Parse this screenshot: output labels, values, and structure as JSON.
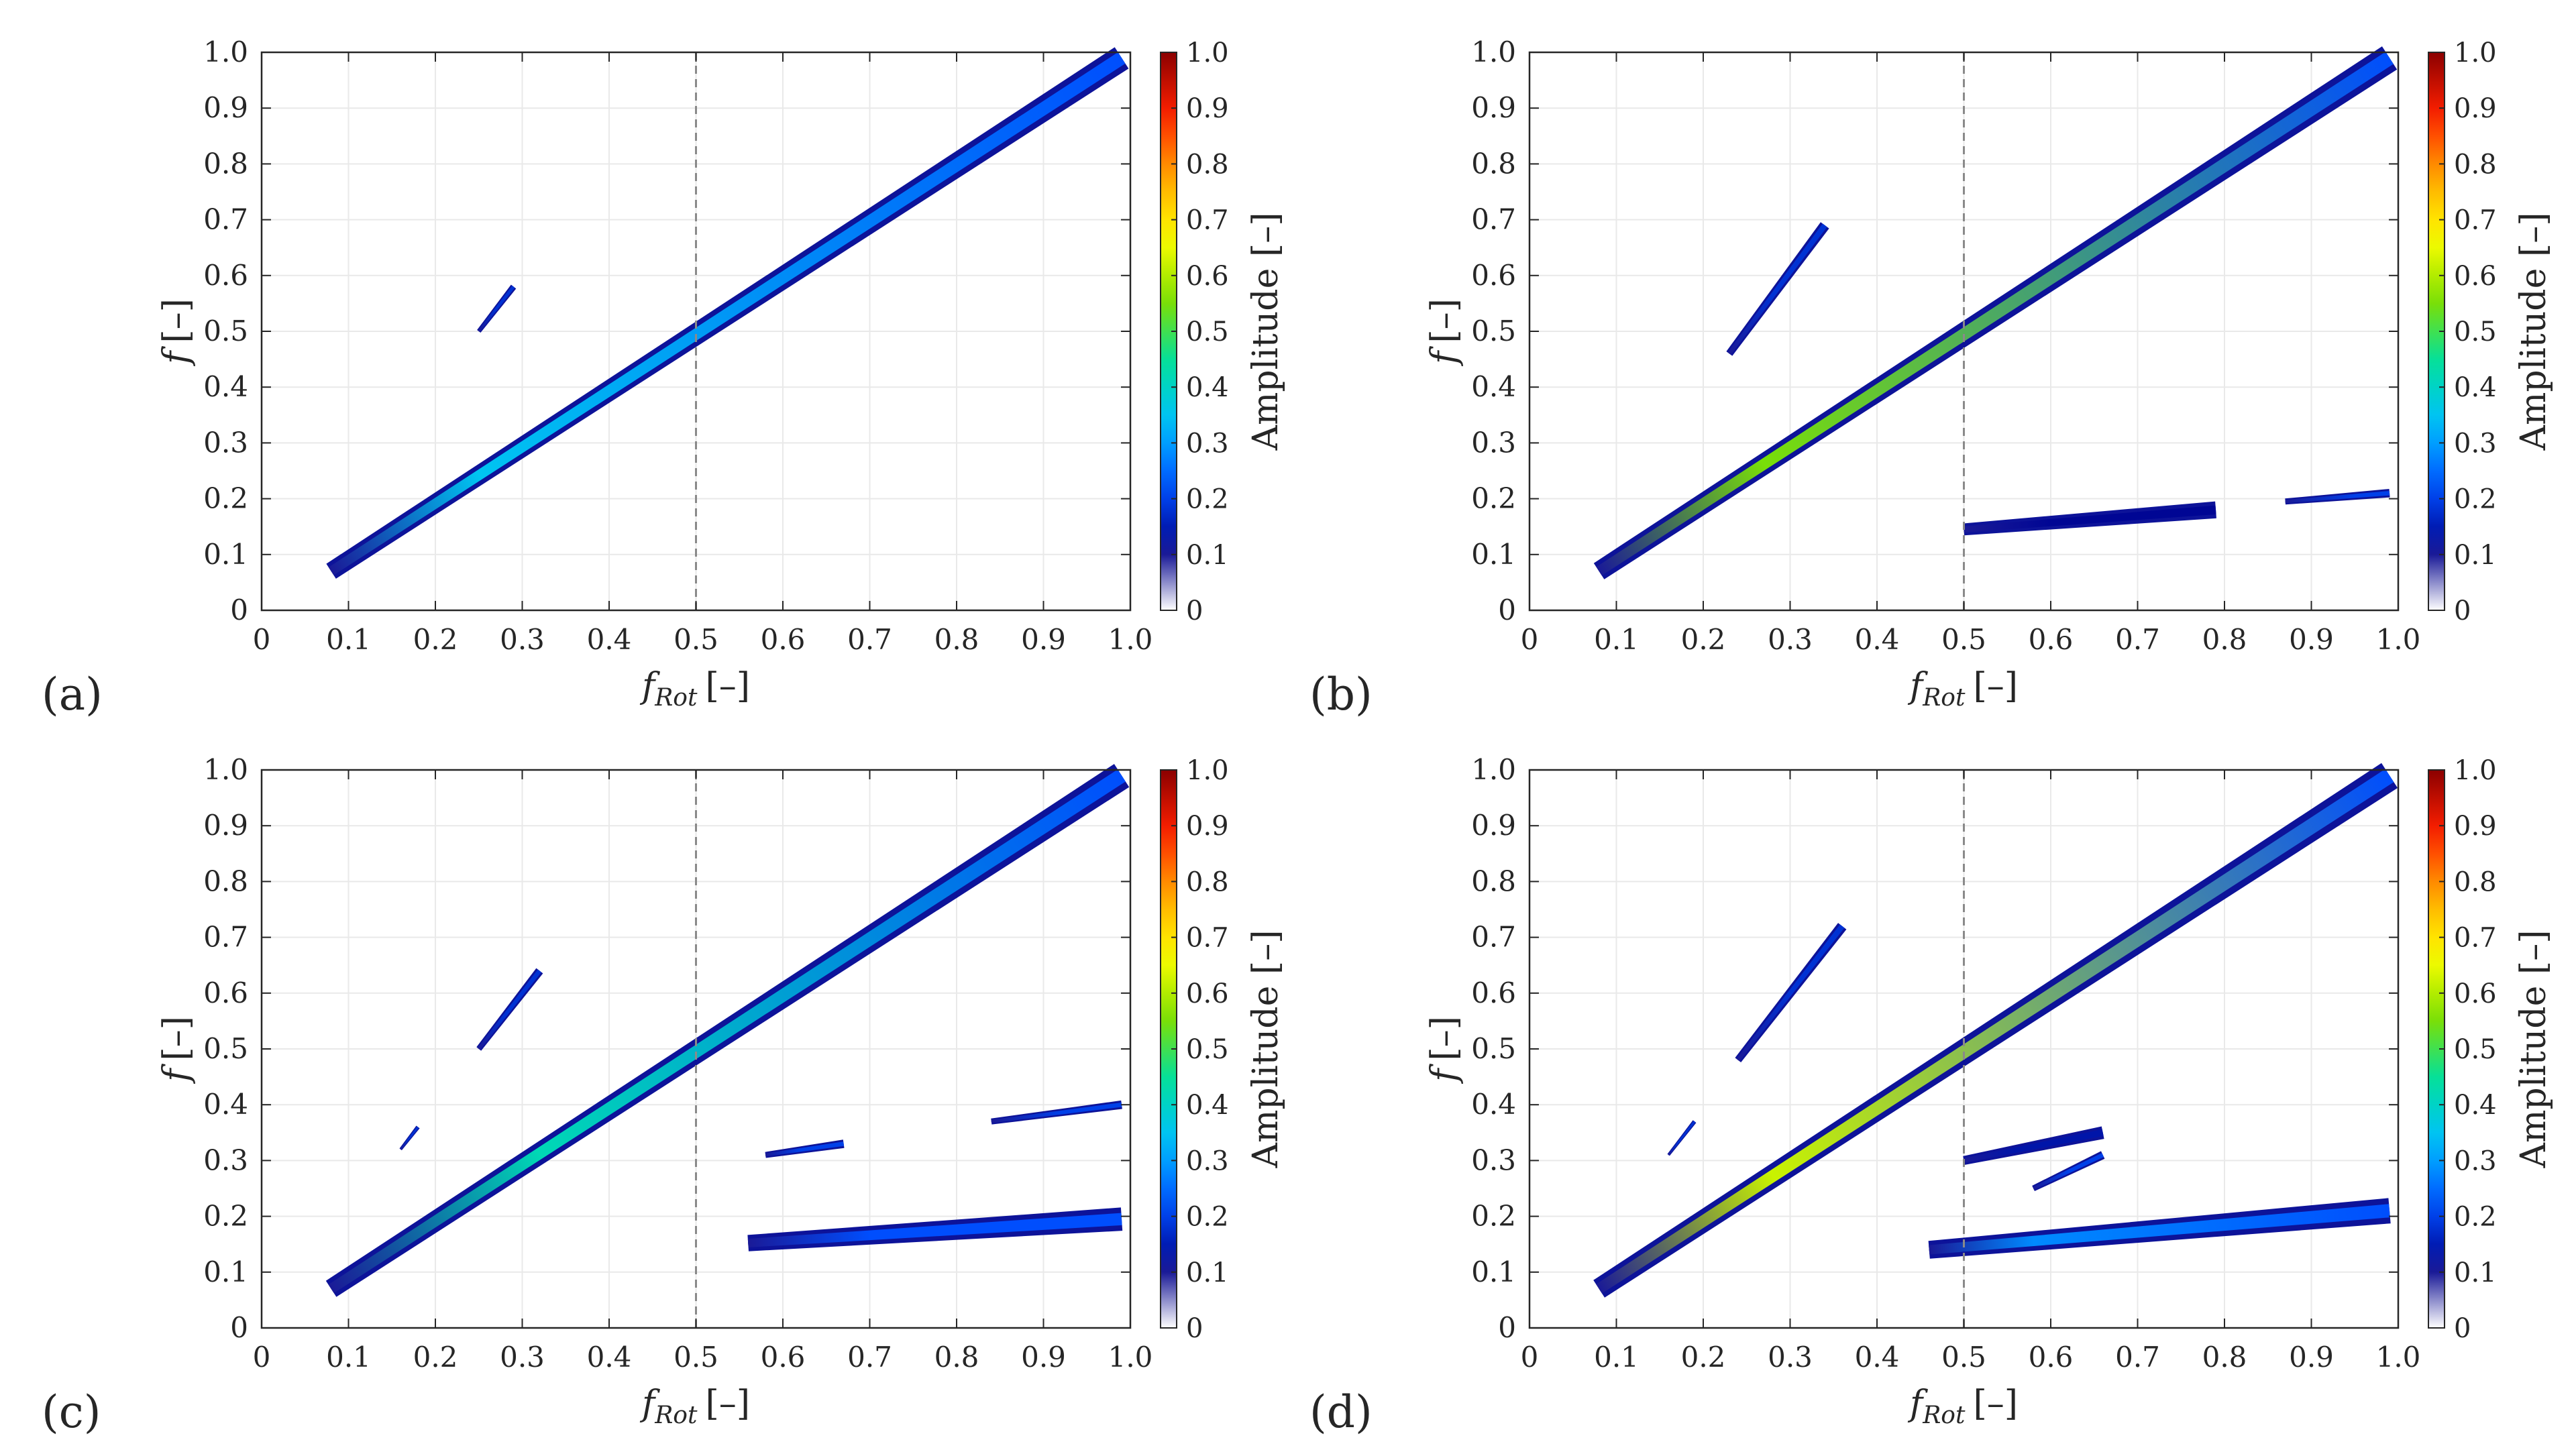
{
  "figure": {
    "colormap": [
      "#ffffff",
      "#00008b",
      "#0050ff",
      "#00bfff",
      "#00e0a0",
      "#7fdf00",
      "#ffff00",
      "#ffa500",
      "#ff2000",
      "#8b0000"
    ],
    "dash_color": "#8a8a8a",
    "grid_color": "#e9e9e9"
  },
  "chart_data": [
    {
      "panel_label": "(a)",
      "type": "heatmap",
      "xlabel": "f",
      "xlabel_sub": "Rot",
      "xlabel_unit": "[–]",
      "ylabel": "f",
      "ylabel_unit": "[–]",
      "xlim": [
        0,
        1
      ],
      "ylim": [
        0,
        1
      ],
      "xticks": [
        "0",
        "0.1",
        "0.2",
        "0.3",
        "0.4",
        "0.5",
        "0.6",
        "0.7",
        "0.8",
        "0.9",
        "1.0"
      ],
      "yticks": [
        "0",
        "0.1",
        "0.2",
        "0.3",
        "0.4",
        "0.5",
        "0.6",
        "0.7",
        "0.8",
        "0.9",
        "1.0"
      ],
      "vline_x": 0.5,
      "colorbar": {
        "label": "Amplitude [–]",
        "range": [
          0,
          1
        ],
        "ticks": [
          "0",
          "0.1",
          "0.2",
          "0.3",
          "0.4",
          "0.5",
          "0.6",
          "0.7",
          "0.8",
          "0.9",
          "1.0"
        ]
      },
      "bands": [
        {
          "name": "1x order line",
          "x": [
            0.08,
            0.99
          ],
          "y": [
            0.07,
            0.99
          ],
          "halfwidth": 0.012,
          "peak_amplitude": 0.35,
          "peak_at": 0.25
        },
        {
          "name": "sub-harmonic streak",
          "x": [
            0.25,
            0.29
          ],
          "y": [
            0.5,
            0.58
          ],
          "halfwidth": 0.003,
          "peak_amplitude": 0.18,
          "peak_at": 0.27
        }
      ]
    },
    {
      "panel_label": "(b)",
      "type": "heatmap",
      "xlabel": "f",
      "xlabel_sub": "Rot",
      "xlabel_unit": "[–]",
      "ylabel": "f",
      "ylabel_unit": "[–]",
      "xlim": [
        0,
        1
      ],
      "ylim": [
        0,
        1
      ],
      "xticks": [
        "0",
        "0.1",
        "0.2",
        "0.3",
        "0.4",
        "0.5",
        "0.6",
        "0.7",
        "0.8",
        "0.9",
        "1.0"
      ],
      "yticks": [
        "0",
        "0.1",
        "0.2",
        "0.3",
        "0.4",
        "0.5",
        "0.6",
        "0.7",
        "0.8",
        "0.9",
        "1.0"
      ],
      "vline_x": 0.5,
      "colorbar": {
        "label": "Amplitude [–]",
        "range": [
          0,
          1
        ],
        "ticks": [
          "0",
          "0.1",
          "0.2",
          "0.3",
          "0.4",
          "0.5",
          "0.6",
          "0.7",
          "0.8",
          "0.9",
          "1.0"
        ]
      },
      "bands": [
        {
          "name": "1x order line",
          "x": [
            0.08,
            0.99
          ],
          "y": [
            0.07,
            0.99
          ],
          "halfwidth": 0.013,
          "peak_amplitude": 0.55,
          "peak_at": 0.27
        },
        {
          "name": "sub-harmonic streak",
          "x": [
            0.23,
            0.34
          ],
          "y": [
            0.46,
            0.69
          ],
          "halfwidth": 0.005,
          "peak_amplitude": 0.18,
          "peak_at": 0.28
        },
        {
          "name": "low-frequency band",
          "x": [
            0.5,
            0.79
          ],
          "y": [
            0.145,
            0.18
          ],
          "halfwidth": 0.008,
          "peak_amplitude": 0.12,
          "peak_at": 0.6
        },
        {
          "name": "low-frequency band tail",
          "x": [
            0.87,
            0.99
          ],
          "y": [
            0.195,
            0.21
          ],
          "halfwidth": 0.004,
          "peak_amplitude": 0.2,
          "peak_at": 0.95
        }
      ]
    },
    {
      "panel_label": "(c)",
      "type": "heatmap",
      "xlabel": "f",
      "xlabel_sub": "Rot",
      "xlabel_unit": "[–]",
      "ylabel": "f",
      "ylabel_unit": "[–]",
      "xlim": [
        0,
        1
      ],
      "ylim": [
        0,
        1
      ],
      "xticks": [
        "0",
        "0.1",
        "0.2",
        "0.3",
        "0.4",
        "0.5",
        "0.6",
        "0.7",
        "0.8",
        "0.9",
        "1.0"
      ],
      "yticks": [
        "0",
        "0.1",
        "0.2",
        "0.3",
        "0.4",
        "0.5",
        "0.6",
        "0.7",
        "0.8",
        "0.9",
        "1.0"
      ],
      "vline_x": 0.5,
      "colorbar": {
        "label": "Amplitude [–]",
        "range": [
          0,
          1
        ],
        "ticks": [
          "0",
          "0.1",
          "0.2",
          "0.3",
          "0.4",
          "0.5",
          "0.6",
          "0.7",
          "0.8",
          "0.9",
          "1.0"
        ]
      },
      "bands": [
        {
          "name": "1x order line",
          "x": [
            0.08,
            0.99
          ],
          "y": [
            0.07,
            0.99
          ],
          "halfwidth": 0.013,
          "peak_amplitude": 0.42,
          "peak_at": 0.32
        },
        {
          "name": "sub-harmonic streak",
          "x": [
            0.25,
            0.32
          ],
          "y": [
            0.5,
            0.64
          ],
          "halfwidth": 0.004,
          "peak_amplitude": 0.18,
          "peak_at": 0.28
        },
        {
          "name": "small streak",
          "x": [
            0.16,
            0.18
          ],
          "y": [
            0.32,
            0.36
          ],
          "halfwidth": 0.002,
          "peak_amplitude": 0.18,
          "peak_at": 0.17
        },
        {
          "name": "mid-frequency band",
          "x": [
            0.58,
            0.67
          ],
          "y": [
            0.31,
            0.33
          ],
          "halfwidth": 0.004,
          "peak_amplitude": 0.2,
          "peak_at": 0.62
        },
        {
          "name": "mid-frequency band tail",
          "x": [
            0.84,
            0.99
          ],
          "y": [
            0.37,
            0.4
          ],
          "halfwidth": 0.004,
          "peak_amplitude": 0.2,
          "peak_at": 0.92
        },
        {
          "name": "low-frequency band",
          "x": [
            0.56,
            0.99
          ],
          "y": [
            0.152,
            0.195
          ],
          "halfwidth": 0.011,
          "peak_amplitude": 0.22,
          "peak_at": 0.7
        }
      ]
    },
    {
      "panel_label": "(d)",
      "type": "heatmap",
      "xlabel": "f",
      "xlabel_sub": "Rot",
      "xlabel_unit": "[–]",
      "ylabel": "f",
      "ylabel_unit": "[–]",
      "xlim": [
        0,
        1
      ],
      "ylim": [
        0,
        1
      ],
      "xticks": [
        "0",
        "0.1",
        "0.2",
        "0.3",
        "0.4",
        "0.5",
        "0.6",
        "0.7",
        "0.8",
        "0.9",
        "1.0"
      ],
      "yticks": [
        "0",
        "0.1",
        "0.2",
        "0.3",
        "0.4",
        "0.5",
        "0.6",
        "0.7",
        "0.8",
        "0.9",
        "1.0"
      ],
      "vline_x": 0.5,
      "colorbar": {
        "label": "Amplitude [–]",
        "range": [
          0,
          1
        ],
        "ticks": [
          "0",
          "0.1",
          "0.2",
          "0.3",
          "0.4",
          "0.5",
          "0.6",
          "0.7",
          "0.8",
          "0.9",
          "1.0"
        ]
      },
      "bands": [
        {
          "name": "1x order line",
          "x": [
            0.08,
            0.99
          ],
          "y": [
            0.07,
            0.99
          ],
          "halfwidth": 0.014,
          "peak_amplitude": 0.62,
          "peak_at": 0.28
        },
        {
          "name": "sub-harmonic streak",
          "x": [
            0.24,
            0.36
          ],
          "y": [
            0.48,
            0.72
          ],
          "halfwidth": 0.005,
          "peak_amplitude": 0.18,
          "peak_at": 0.3
        },
        {
          "name": "small streak",
          "x": [
            0.16,
            0.19
          ],
          "y": [
            0.31,
            0.37
          ],
          "halfwidth": 0.002,
          "peak_amplitude": 0.18,
          "peak_at": 0.17
        },
        {
          "name": "mid-frequency band",
          "x": [
            0.5,
            0.66
          ],
          "y": [
            0.3,
            0.35
          ],
          "halfwidth": 0.006,
          "peak_amplitude": 0.14,
          "peak_at": 0.56
        },
        {
          "name": "mid-frequency short band",
          "x": [
            0.58,
            0.66
          ],
          "y": [
            0.25,
            0.31
          ],
          "halfwidth": 0.004,
          "peak_amplitude": 0.2,
          "peak_at": 0.62
        },
        {
          "name": "low-frequency band",
          "x": [
            0.46,
            0.99
          ],
          "y": [
            0.14,
            0.21
          ],
          "halfwidth": 0.012,
          "peak_amplitude": 0.28,
          "peak_at": 0.58
        }
      ]
    }
  ]
}
